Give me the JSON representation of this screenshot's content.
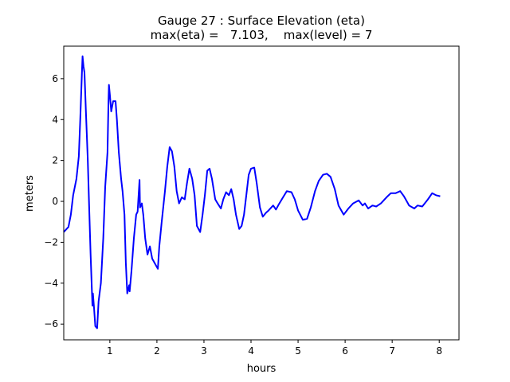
{
  "chart_data": {
    "type": "line",
    "title_line1": "Gauge 27 : Surface Elevation (eta)",
    "title_line2": "max(eta) =   7.103,    max(level) = 7",
    "xlabel": "hours",
    "ylabel": "meters",
    "xlim": [
      0.02,
      8.42
    ],
    "ylim": [
      -6.77,
      7.59
    ],
    "xticks": [
      1,
      2,
      3,
      4,
      5,
      6,
      7,
      8
    ],
    "yticks": [
      -6,
      -4,
      -2,
      0,
      2,
      4,
      6
    ],
    "grid": false,
    "series": [
      {
        "name": "eta",
        "color": "#0000ff",
        "x": [
          0.02,
          0.12,
          0.17,
          0.22,
          0.29,
          0.34,
          0.37,
          0.41,
          0.42,
          0.44,
          0.46,
          0.49,
          0.53,
          0.56,
          0.59,
          0.63,
          0.64,
          0.66,
          0.69,
          0.73,
          0.76,
          0.81,
          0.86,
          0.9,
          0.95,
          0.97,
          0.98,
          1.0,
          1.03,
          1.07,
          1.12,
          1.15,
          1.19,
          1.24,
          1.27,
          1.31,
          1.34,
          1.37,
          1.41,
          1.42,
          1.46,
          1.51,
          1.56,
          1.59,
          1.63,
          1.64,
          1.68,
          1.71,
          1.75,
          1.8,
          1.85,
          1.9,
          2.02,
          2.05,
          2.1,
          2.17,
          2.22,
          2.27,
          2.32,
          2.37,
          2.42,
          2.47,
          2.53,
          2.59,
          2.64,
          2.69,
          2.75,
          2.8,
          2.85,
          2.92,
          2.97,
          3.02,
          3.07,
          3.12,
          3.17,
          3.24,
          3.29,
          3.36,
          3.41,
          3.47,
          3.53,
          3.58,
          3.63,
          3.68,
          3.75,
          3.8,
          3.85,
          3.9,
          3.95,
          4.0,
          4.07,
          4.12,
          4.19,
          4.25,
          4.32,
          4.37,
          4.47,
          4.53,
          4.59,
          4.68,
          4.76,
          4.86,
          4.93,
          5.0,
          5.1,
          5.19,
          5.27,
          5.36,
          5.44,
          5.53,
          5.61,
          5.69,
          5.78,
          5.86,
          5.97,
          6.07,
          6.17,
          6.29,
          6.37,
          6.42,
          6.49,
          6.58,
          6.66,
          6.76,
          6.88,
          6.97,
          7.07,
          7.17,
          7.25,
          7.36,
          7.47,
          7.54,
          7.64,
          7.76,
          7.85,
          7.93,
          8.02
        ],
        "y": [
          -1.5,
          -1.25,
          -0.65,
          0.3,
          1.1,
          2.2,
          4.0,
          6.5,
          7.1,
          6.6,
          6.3,
          4.4,
          2.1,
          -0.3,
          -2.6,
          -5.1,
          -4.5,
          -5.1,
          -6.1,
          -6.2,
          -4.9,
          -4.0,
          -1.8,
          0.7,
          2.4,
          4.8,
          5.7,
          5.2,
          4.4,
          4.9,
          4.9,
          4.0,
          2.4,
          1.1,
          0.5,
          -0.65,
          -3.0,
          -4.5,
          -4.1,
          -4.4,
          -3.4,
          -1.8,
          -0.65,
          -0.5,
          1.05,
          -0.3,
          -0.1,
          -0.65,
          -1.8,
          -2.6,
          -2.2,
          -2.8,
          -3.3,
          -2.2,
          -1.05,
          0.5,
          1.7,
          2.65,
          2.45,
          1.7,
          0.5,
          -0.1,
          0.2,
          0.1,
          0.9,
          1.6,
          1.1,
          0.3,
          -1.2,
          -1.5,
          -0.65,
          0.3,
          1.5,
          1.6,
          1.1,
          0.1,
          -0.1,
          -0.35,
          0.1,
          0.45,
          0.3,
          0.6,
          0.1,
          -0.65,
          -1.35,
          -1.2,
          -0.65,
          0.3,
          1.3,
          1.6,
          1.65,
          0.9,
          -0.3,
          -0.75,
          -0.55,
          -0.45,
          -0.2,
          -0.4,
          -0.15,
          0.2,
          0.5,
          0.45,
          0.1,
          -0.45,
          -0.9,
          -0.85,
          -0.3,
          0.5,
          1.0,
          1.3,
          1.35,
          1.2,
          0.6,
          -0.2,
          -0.65,
          -0.35,
          -0.1,
          0.05,
          -0.2,
          -0.1,
          -0.35,
          -0.2,
          -0.25,
          -0.1,
          0.2,
          0.4,
          0.4,
          0.5,
          0.25,
          -0.2,
          -0.35,
          -0.2,
          -0.25,
          0.1,
          0.4,
          0.3,
          0.25
        ]
      }
    ]
  }
}
